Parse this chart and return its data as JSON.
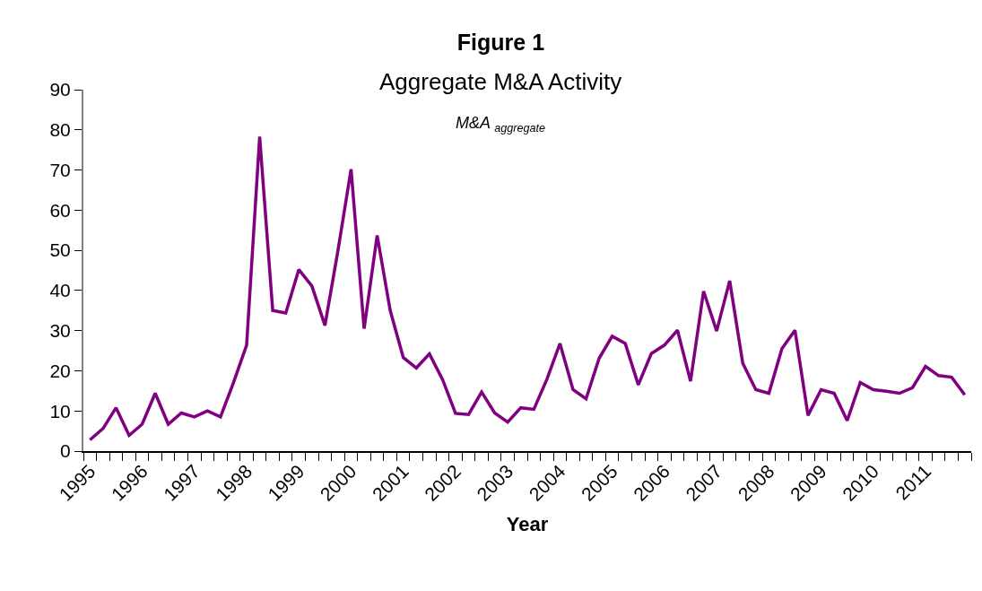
{
  "chart_data": {
    "type": "line",
    "title": "Figure 1",
    "subtitle": "Aggregate M&A Activity",
    "annotations": [
      "M&A $_{aggregate}$"
    ],
    "xlabel": "Year",
    "categories": [
      "1995",
      null,
      null,
      null,
      "1996",
      null,
      null,
      null,
      "1997",
      null,
      null,
      null,
      "1998",
      null,
      null,
      null,
      "1999",
      null,
      null,
      null,
      "2000",
      null,
      null,
      null,
      "2001",
      null,
      null,
      null,
      "2002",
      null,
      null,
      null,
      "2003",
      null,
      null,
      null,
      "2004",
      null,
      null,
      null,
      "2005",
      null,
      null,
      null,
      "2006",
      null,
      null,
      null,
      "2007",
      null,
      null,
      null,
      "2008",
      null,
      null,
      null,
      "2009",
      null,
      null,
      null,
      "2010",
      null,
      null,
      null,
      "2011",
      null,
      null,
      null
    ],
    "series": [
      {
        "color": "#800080",
        "values": [
          2.8,
          5.6,
          10.8,
          3.9,
          6.7,
          14.4,
          6.7,
          9.5,
          8.5,
          10.0,
          8.5,
          17.1,
          26.4,
          78.3,
          35.0,
          34.4,
          45.2,
          41.1,
          31.3,
          50.0,
          70.2,
          30.5,
          53.7,
          35.0,
          23.3,
          20.7,
          24.2,
          17.9,
          9.4,
          9.1,
          14.7,
          9.5,
          7.2,
          10.8,
          10.4,
          17.9,
          26.8,
          15.3,
          13.0,
          23.1,
          28.6,
          26.8,
          16.5,
          24.3,
          26.4,
          30.1,
          17.4,
          39.8,
          29.9,
          42.4,
          21.9,
          15.3,
          14.4,
          25.5,
          30.1,
          8.9,
          15.3,
          14.4,
          7.6,
          17.1,
          15.3,
          14.9,
          14.4,
          15.8,
          21.1,
          18.8,
          18.4,
          14.0
        ]
      }
    ],
    "ylim": [
      0,
      90
    ],
    "yticks": [
      0,
      10,
      20,
      30,
      40,
      50,
      60,
      70,
      80,
      90
    ],
    "marker": "none",
    "line_style": "solid"
  }
}
